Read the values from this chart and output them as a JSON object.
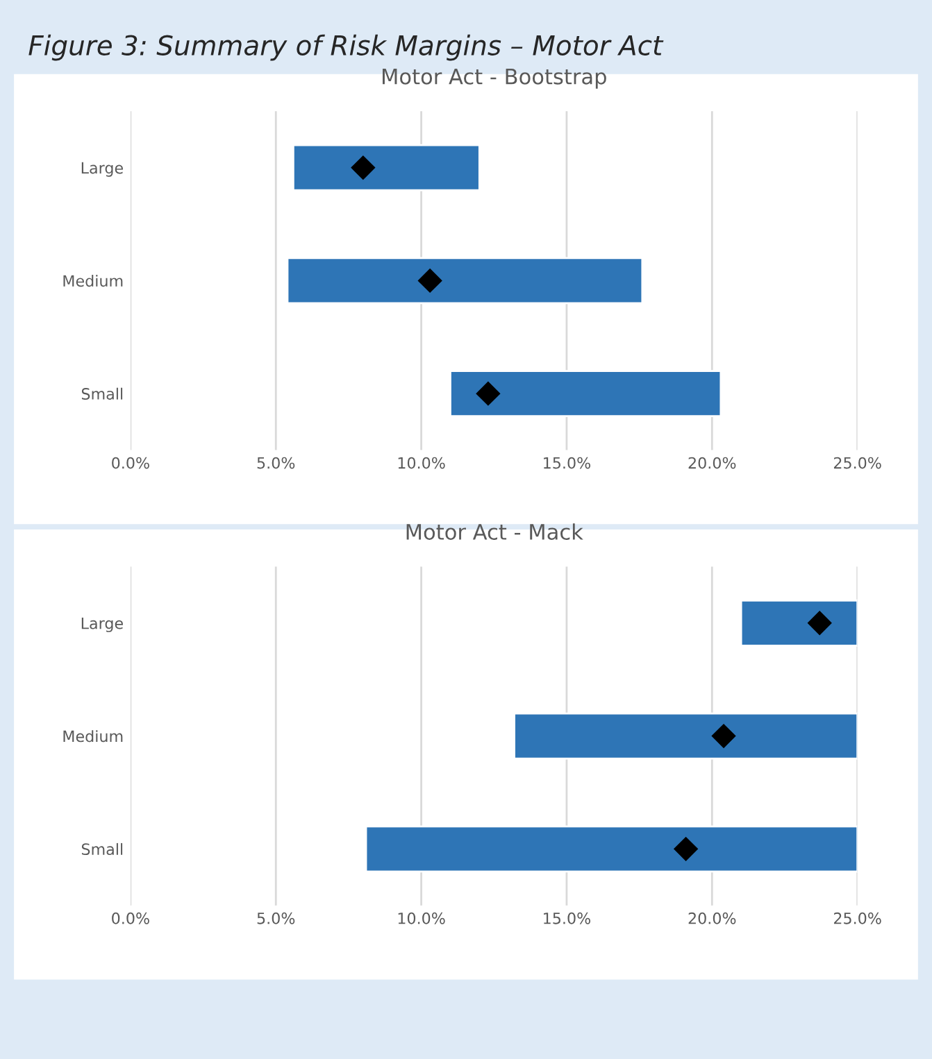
{
  "chart_data": [
    {
      "type": "bar",
      "orientation": "horizontal",
      "title": "Motor Act - Bootstrap",
      "annotations": [
        "Figure 3: Summary of Risk Margins – Motor Act"
      ],
      "categories": [
        "Large",
        "Medium",
        "Small"
      ],
      "series": [
        {
          "color": "#2e75b6",
          "base": [
            5.6,
            5.4,
            11.0
          ],
          "values": [
            6.4,
            12.2,
            9.3
          ]
        },
        {
          "type": "scatter",
          "color": "#000000",
          "marker": "diamond",
          "x": [
            "Large",
            "Medium",
            "Small"
          ],
          "values": [
            8.0,
            10.3,
            12.3
          ]
        }
      ],
      "xlim": [
        0,
        25
      ],
      "xticks": [
        {
          "value": 0,
          "label": "0.0%"
        },
        {
          "value": 5,
          "label": "5.0%"
        },
        {
          "value": 10,
          "label": "10.0%"
        },
        {
          "value": 15,
          "label": "15.0%"
        },
        {
          "value": 20,
          "label": "20.0%"
        },
        {
          "value": 25,
          "label": "25.0%"
        }
      ],
      "grid": "x",
      "legend": false
    },
    {
      "type": "bar",
      "orientation": "horizontal",
      "title": "Motor Act - Mack",
      "categories": [
        "Large",
        "Medium",
        "Small"
      ],
      "series": [
        {
          "color": "#2e75b6",
          "base": [
            21.0,
            13.2,
            8.1
          ],
          "values": [
            4.0,
            11.8,
            16.9
          ]
        },
        {
          "type": "scatter",
          "color": "#000000",
          "marker": "diamond",
          "x": [
            "Large",
            "Medium",
            "Small"
          ],
          "values": [
            23.7,
            20.4,
            19.1
          ]
        }
      ],
      "xlim": [
        0,
        25
      ],
      "xticks": [
        {
          "value": 0,
          "label": "0.0%"
        },
        {
          "value": 5,
          "label": "5.0%"
        },
        {
          "value": 10,
          "label": "10.0%"
        },
        {
          "value": 15,
          "label": "15.0%"
        },
        {
          "value": 20,
          "label": "20.0%"
        },
        {
          "value": 25,
          "label": "25.0%"
        }
      ],
      "grid": "x",
      "legend": false
    }
  ]
}
